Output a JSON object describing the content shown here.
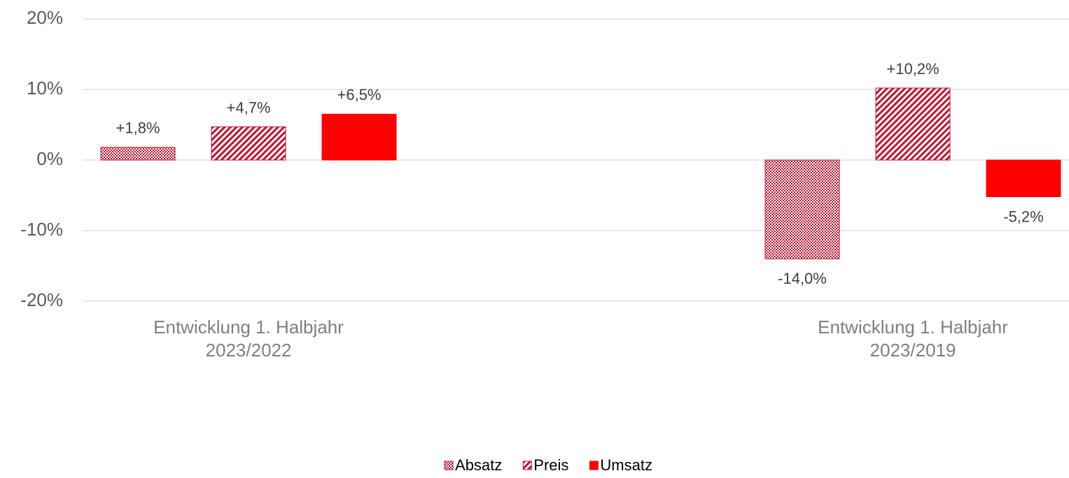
{
  "chart_data": {
    "type": "bar",
    "categories": [
      "Entwicklung 1. Halbjahr 2023/2022",
      "Entwicklung 1. Halbjahr 2023/2019"
    ],
    "series": [
      {
        "name": "Absatz",
        "color": "#c0142f",
        "values": [
          1.8,
          -14.0
        ],
        "value_labels": [
          "+1,8%",
          "-14,0%"
        ]
      },
      {
        "name": "Preis",
        "color": "#c0142f",
        "values": [
          4.7,
          10.2
        ],
        "value_labels": [
          "+4,7%",
          "+10,2%"
        ]
      },
      {
        "name": "Umsatz",
        "color": "#ff0000",
        "values": [
          6.5,
          -5.2
        ],
        "value_labels": [
          "+6,5%",
          "-5,2%"
        ]
      }
    ],
    "ylim": [
      -20,
      20
    ],
    "yticks": [
      {
        "value": -20,
        "label": "-20%"
      },
      {
        "value": -10,
        "label": "-10%"
      },
      {
        "value": 0,
        "label": "0%"
      },
      {
        "value": 10,
        "label": "10%"
      },
      {
        "value": 20,
        "label": "20%"
      }
    ],
    "grid": true,
    "legend": "bottom"
  }
}
